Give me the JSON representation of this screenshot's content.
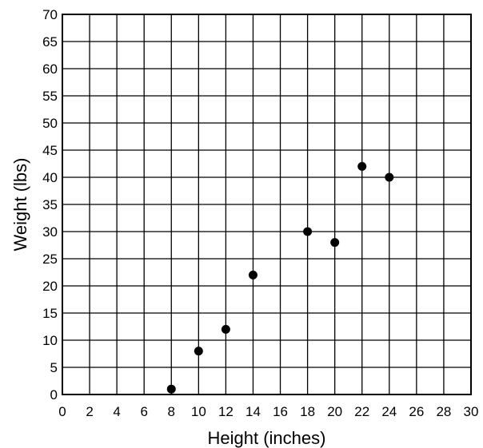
{
  "chart_data": {
    "type": "scatter",
    "title": "",
    "xlabel": "Height (inches)",
    "ylabel": "Weight (lbs)",
    "xlim": [
      0,
      30
    ],
    "ylim": [
      0,
      70
    ],
    "xticks": [
      0,
      2,
      4,
      6,
      8,
      10,
      12,
      14,
      16,
      18,
      20,
      22,
      24,
      26,
      28,
      30
    ],
    "yticks": [
      0,
      5,
      10,
      15,
      20,
      25,
      30,
      35,
      40,
      45,
      50,
      55,
      60,
      65,
      70
    ],
    "grid": true,
    "marker_color": "#000000",
    "points": [
      {
        "x": 8,
        "y": 1
      },
      {
        "x": 10,
        "y": 8
      },
      {
        "x": 12,
        "y": 12
      },
      {
        "x": 14,
        "y": 22
      },
      {
        "x": 18,
        "y": 30
      },
      {
        "x": 20,
        "y": 28
      },
      {
        "x": 22,
        "y": 42
      },
      {
        "x": 24,
        "y": 40
      }
    ]
  }
}
